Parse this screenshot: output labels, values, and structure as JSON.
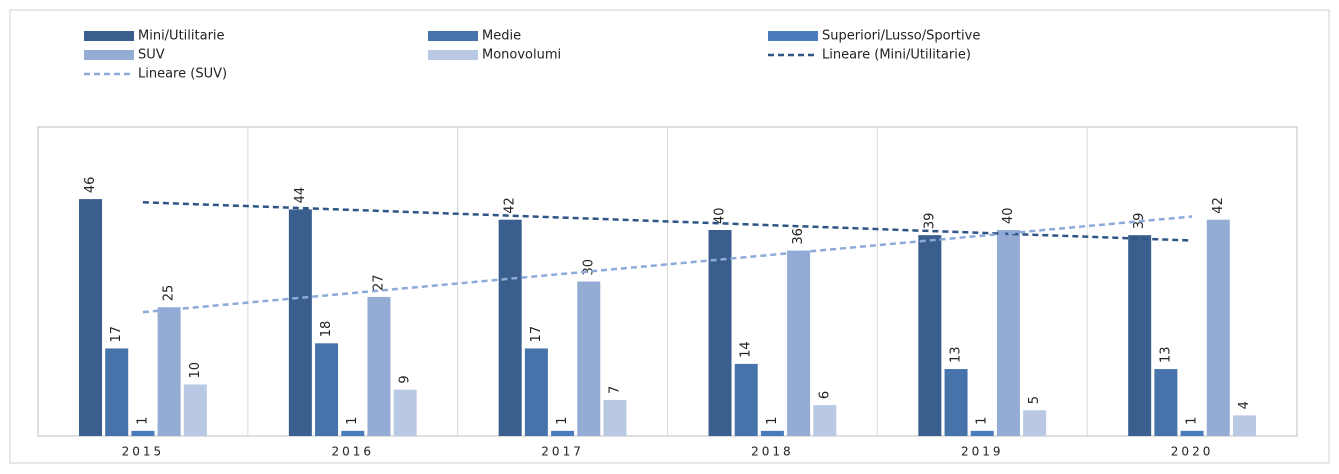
{
  "chart_data": {
    "type": "bar",
    "categories": [
      "2015",
      "2016",
      "2017",
      "2018",
      "2019",
      "2020"
    ],
    "series": [
      {
        "name": "Mini/Utilitarie",
        "color": "#3a5f8f",
        "values": [
          46,
          44,
          42,
          40,
          39,
          39
        ]
      },
      {
        "name": "Medie",
        "color": "#4674aa",
        "values": [
          17,
          18,
          17,
          14,
          13,
          13
        ]
      },
      {
        "name": "Superiori/Lusso/Sportive",
        "color": "#4a7cbd",
        "values": [
          1,
          1,
          1,
          1,
          1,
          1
        ]
      },
      {
        "name": "SUV",
        "color": "#94abd3",
        "values": [
          25,
          27,
          30,
          36,
          40,
          42
        ]
      },
      {
        "name": "Monovolumi",
        "color": "#b9c8e3",
        "values": [
          10,
          9,
          7,
          6,
          5,
          4
        ]
      }
    ],
    "trendlines": [
      {
        "name": "Lineare (Mini/Utilitarie)",
        "color": "#2e5585",
        "of": 0
      },
      {
        "name": "Lineare (SUV)",
        "color": "#8eaadb",
        "of": 3
      }
    ],
    "ylim": [
      0,
      60
    ]
  }
}
